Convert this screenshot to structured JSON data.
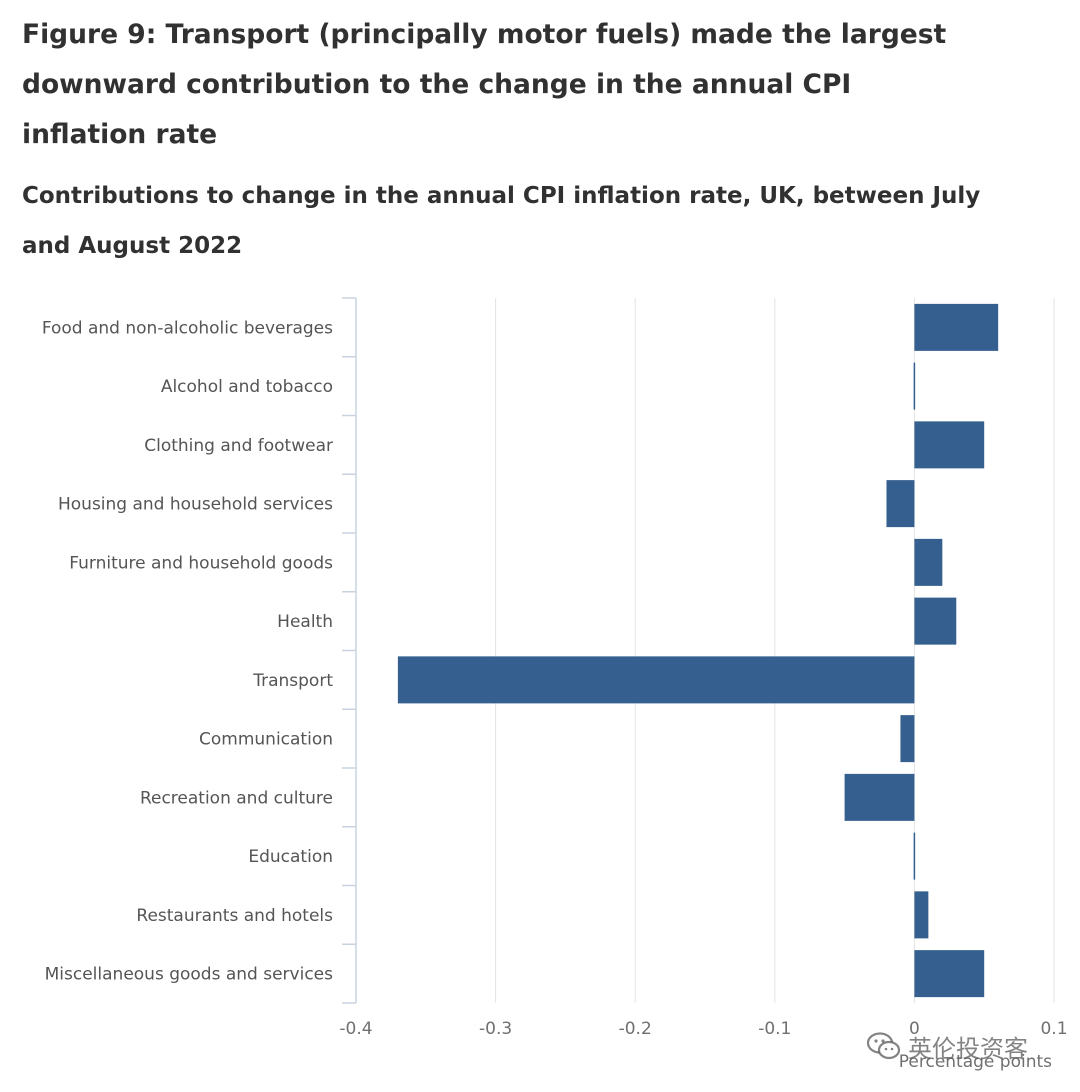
{
  "figure": {
    "title": "Figure 9: Transport (principally motor fuels) made the largest downward contribution to the change in the annual CPI inflation rate",
    "subtitle": "Contributions to change in the annual CPI inflation rate, UK, between July and August 2022"
  },
  "chart_data": {
    "type": "bar",
    "orientation": "horizontal",
    "categories": [
      "Food and non-alcoholic beverages",
      "Alcohol and tobacco",
      "Clothing and footwear",
      "Housing and household services",
      "Furniture and household goods",
      "Health",
      "Transport",
      "Communication",
      "Recreation and culture",
      "Education",
      "Restaurants and hotels",
      "Miscellaneous goods and services"
    ],
    "values": [
      0.06,
      0.0,
      0.05,
      -0.02,
      0.02,
      0.03,
      -0.37,
      -0.01,
      -0.05,
      0.0,
      0.01,
      0.05
    ],
    "xlabel": "Percentage points",
    "xlim": [
      -0.4,
      0.1
    ],
    "xticks": [
      -0.4,
      -0.3,
      -0.2,
      -0.1,
      0,
      0.1
    ],
    "xtick_labels": [
      "-0.4",
      "-0.3",
      "-0.2",
      "-0.1",
      "0",
      "0.1"
    ],
    "grid": "vertical",
    "bar_color": "#355f8e"
  },
  "watermark": {
    "text": "英伦投资客",
    "icon": "wechat-icon"
  }
}
